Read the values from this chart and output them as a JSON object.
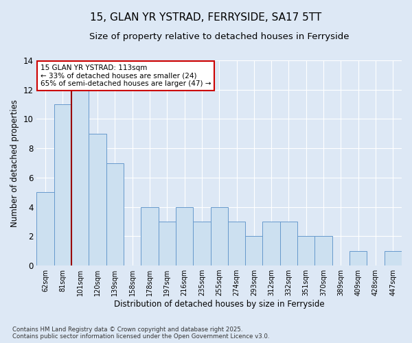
{
  "title": "15, GLAN YR YSTRAD, FERRYSIDE, SA17 5TT",
  "subtitle": "Size of property relative to detached houses in Ferryside",
  "xlabel": "Distribution of detached houses by size in Ferryside",
  "ylabel": "Number of detached properties",
  "categories": [
    "62sqm",
    "81sqm",
    "101sqm",
    "120sqm",
    "139sqm",
    "158sqm",
    "178sqm",
    "197sqm",
    "216sqm",
    "235sqm",
    "255sqm",
    "274sqm",
    "293sqm",
    "312sqm",
    "332sqm",
    "351sqm",
    "370sqm",
    "389sqm",
    "409sqm",
    "428sqm",
    "447sqm"
  ],
  "values": [
    5,
    11,
    12,
    9,
    7,
    0,
    4,
    3,
    4,
    3,
    4,
    3,
    2,
    3,
    3,
    2,
    2,
    0,
    1,
    0,
    1
  ],
  "bar_color": "#cce0f0",
  "bar_edge_color": "#6699cc",
  "red_line_x": 1.5,
  "annotation_text": "15 GLAN YR YSTRAD: 113sqm\n← 33% of detached houses are smaller (24)\n65% of semi-detached houses are larger (47) →",
  "annotation_box_color": "#ffffff",
  "annotation_box_edge": "#cc0000",
  "ylim": [
    0,
    14
  ],
  "yticks": [
    0,
    2,
    4,
    6,
    8,
    10,
    12,
    14
  ],
  "footer": "Contains HM Land Registry data © Crown copyright and database right 2025.\nContains public sector information licensed under the Open Government Licence v3.0.",
  "bg_color": "#dde8f5",
  "plot_bg_color": "#dde8f5",
  "grid_color": "#ffffff",
  "title_fontsize": 11,
  "subtitle_fontsize": 9.5
}
